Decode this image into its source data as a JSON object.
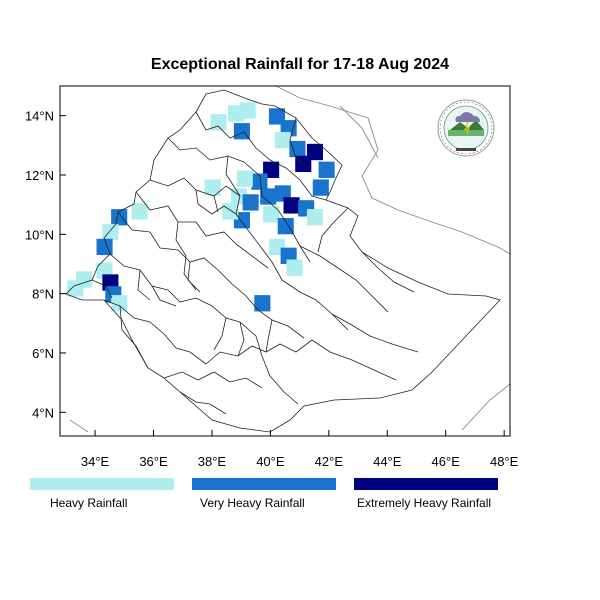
{
  "title": "Exceptional Rainfall for 17-18 Aug 2024",
  "map_extent": {
    "lon": [
      32.8,
      48.2
    ],
    "lat": [
      3.2,
      15.0
    ]
  },
  "x_ticks": [
    {
      "lon": 34,
      "label": "34°E"
    },
    {
      "lon": 36,
      "label": "36°E"
    },
    {
      "lon": 38,
      "label": "38°E"
    },
    {
      "lon": 40,
      "label": "40°E"
    },
    {
      "lon": 42,
      "label": "42°E"
    },
    {
      "lon": 44,
      "label": "44°E"
    },
    {
      "lon": 46,
      "label": "46°E"
    },
    {
      "lon": 48,
      "label": "48°E"
    }
  ],
  "y_ticks": [
    {
      "lat": 4,
      "label": "4°N"
    },
    {
      "lat": 6,
      "label": "6°N"
    },
    {
      "lat": 8,
      "label": "8°N"
    },
    {
      "lat": 10,
      "label": "10°N"
    },
    {
      "lat": 12,
      "label": "12°N"
    },
    {
      "lat": 14,
      "label": "14°N"
    }
  ],
  "legend": [
    {
      "label": "Heavy Rainfall",
      "color": "#aeeeee"
    },
    {
      "label": "Very Heavy Rainfall",
      "color": "#1874cd"
    },
    {
      "label": "Extremely Heavy Rainfall",
      "color": "#000080"
    }
  ],
  "colors": {
    "heavy": "#aeeeee",
    "very_heavy": "#1874cd",
    "extreme": "#000080"
  },
  "rainfall_cells": [
    {
      "lon": 38.2,
      "lat": 13.8,
      "class": "heavy"
    },
    {
      "lon": 38.8,
      "lat": 14.1,
      "class": "heavy"
    },
    {
      "lon": 39.2,
      "lat": 14.2,
      "class": "heavy"
    },
    {
      "lon": 39.0,
      "lat": 13.5,
      "class": "very_heavy"
    },
    {
      "lon": 40.2,
      "lat": 14.0,
      "class": "very_heavy"
    },
    {
      "lon": 40.6,
      "lat": 13.6,
      "class": "very_heavy"
    },
    {
      "lon": 40.4,
      "lat": 13.2,
      "class": "heavy"
    },
    {
      "lon": 40.9,
      "lat": 12.9,
      "class": "very_heavy"
    },
    {
      "lon": 41.1,
      "lat": 12.4,
      "class": "extreme"
    },
    {
      "lon": 41.5,
      "lat": 12.8,
      "class": "extreme"
    },
    {
      "lon": 41.9,
      "lat": 12.2,
      "class": "very_heavy"
    },
    {
      "lon": 41.7,
      "lat": 11.6,
      "class": "very_heavy"
    },
    {
      "lon": 40.0,
      "lat": 12.2,
      "class": "extreme"
    },
    {
      "lon": 39.6,
      "lat": 11.8,
      "class": "very_heavy"
    },
    {
      "lon": 39.1,
      "lat": 11.9,
      "class": "heavy"
    },
    {
      "lon": 38.9,
      "lat": 11.3,
      "class": "heavy"
    },
    {
      "lon": 39.3,
      "lat": 11.1,
      "class": "very_heavy"
    },
    {
      "lon": 39.9,
      "lat": 11.3,
      "class": "very_heavy"
    },
    {
      "lon": 40.4,
      "lat": 11.4,
      "class": "very_heavy"
    },
    {
      "lon": 40.7,
      "lat": 11.0,
      "class": "extreme"
    },
    {
      "lon": 41.2,
      "lat": 10.9,
      "class": "very_heavy"
    },
    {
      "lon": 40.0,
      "lat": 10.7,
      "class": "heavy"
    },
    {
      "lon": 39.0,
      "lat": 10.5,
      "class": "very_heavy"
    },
    {
      "lon": 38.6,
      "lat": 10.8,
      "class": "heavy"
    },
    {
      "lon": 40.5,
      "lat": 10.3,
      "class": "very_heavy"
    },
    {
      "lon": 41.5,
      "lat": 10.6,
      "class": "heavy"
    },
    {
      "lon": 40.2,
      "lat": 9.6,
      "class": "heavy"
    },
    {
      "lon": 40.6,
      "lat": 9.3,
      "class": "very_heavy"
    },
    {
      "lon": 40.8,
      "lat": 8.9,
      "class": "heavy"
    },
    {
      "lon": 38.0,
      "lat": 11.6,
      "class": "heavy"
    },
    {
      "lon": 35.5,
      "lat": 10.8,
      "class": "heavy"
    },
    {
      "lon": 34.8,
      "lat": 10.6,
      "class": "very_heavy"
    },
    {
      "lon": 34.5,
      "lat": 10.1,
      "class": "heavy"
    },
    {
      "lon": 34.3,
      "lat": 9.6,
      "class": "very_heavy"
    },
    {
      "lon": 34.3,
      "lat": 8.8,
      "class": "heavy"
    },
    {
      "lon": 34.5,
      "lat": 8.4,
      "class": "extreme"
    },
    {
      "lon": 34.6,
      "lat": 8.0,
      "class": "very_heavy"
    },
    {
      "lon": 34.8,
      "lat": 7.7,
      "class": "heavy"
    },
    {
      "lon": 33.3,
      "lat": 8.2,
      "class": "heavy"
    },
    {
      "lon": 33.6,
      "lat": 8.5,
      "class": "heavy"
    },
    {
      "lon": 39.7,
      "lat": 7.7,
      "class": "very_heavy"
    }
  ]
}
